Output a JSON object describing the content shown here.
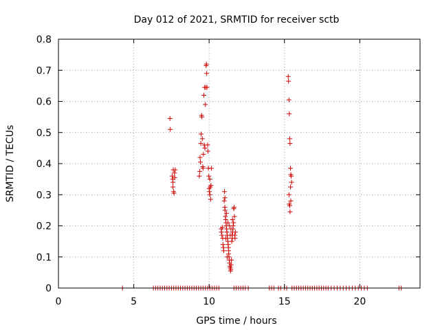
{
  "chart_data": {
    "type": "scatter",
    "title": "Day 012 of 2021, SRMTID for receiver sctb",
    "xlabel": "GPS time / hours",
    "ylabel": "SRMTID / TECUs",
    "xlim": [
      0,
      24
    ],
    "ylim": [
      0,
      0.8
    ],
    "xticks": [
      0,
      5,
      10,
      15,
      20
    ],
    "yticks": [
      0,
      0.1,
      0.2,
      0.3,
      0.4,
      0.5,
      0.6,
      0.7,
      0.8
    ],
    "xtick_labels": [
      "0",
      "5",
      "10",
      "15",
      "20"
    ],
    "ytick_labels": [
      "0",
      "0.1",
      "0.2",
      "0.3",
      "0.4",
      "0.5",
      "0.6",
      "0.7",
      "0.8"
    ],
    "grid": true,
    "marker": "plus",
    "marker_color": "#cc0000",
    "series": [
      {
        "name": "SRMTID",
        "points": [
          [
            4.25,
            0
          ],
          [
            6.3,
            0
          ],
          [
            6.45,
            0
          ],
          [
            6.6,
            0
          ],
          [
            6.75,
            0
          ],
          [
            6.9,
            0
          ],
          [
            7.05,
            0
          ],
          [
            7.2,
            0
          ],
          [
            7.35,
            0
          ],
          [
            7.5,
            0
          ],
          [
            7.65,
            0
          ],
          [
            7.8,
            0
          ],
          [
            7.95,
            0
          ],
          [
            8.1,
            0
          ],
          [
            8.25,
            0
          ],
          [
            8.4,
            0
          ],
          [
            8.55,
            0
          ],
          [
            8.7,
            0
          ],
          [
            8.85,
            0
          ],
          [
            9.0,
            0
          ],
          [
            9.15,
            0
          ],
          [
            9.3,
            0
          ],
          [
            9.45,
            0
          ],
          [
            9.6,
            0
          ],
          [
            9.75,
            0
          ],
          [
            9.9,
            0
          ],
          [
            10.05,
            0
          ],
          [
            10.2,
            0
          ],
          [
            10.35,
            0
          ],
          [
            10.5,
            0
          ],
          [
            10.65,
            0
          ],
          [
            11.65,
            0
          ],
          [
            11.8,
            0
          ],
          [
            11.95,
            0
          ],
          [
            12.1,
            0
          ],
          [
            12.25,
            0
          ],
          [
            12.4,
            0
          ],
          [
            12.6,
            0
          ],
          [
            14.0,
            0
          ],
          [
            14.15,
            0
          ],
          [
            14.3,
            0
          ],
          [
            14.6,
            0
          ],
          [
            14.75,
            0
          ],
          [
            15.0,
            0
          ],
          [
            15.15,
            0
          ],
          [
            15.5,
            0
          ],
          [
            15.65,
            0
          ],
          [
            15.8,
            0
          ],
          [
            15.95,
            0
          ],
          [
            16.1,
            0
          ],
          [
            16.25,
            0
          ],
          [
            16.4,
            0
          ],
          [
            16.55,
            0
          ],
          [
            16.7,
            0
          ],
          [
            16.85,
            0
          ],
          [
            17.0,
            0
          ],
          [
            17.15,
            0
          ],
          [
            17.3,
            0
          ],
          [
            17.45,
            0
          ],
          [
            17.6,
            0
          ],
          [
            17.75,
            0
          ],
          [
            17.9,
            0
          ],
          [
            18.1,
            0
          ],
          [
            18.3,
            0
          ],
          [
            18.5,
            0
          ],
          [
            18.7,
            0
          ],
          [
            18.9,
            0
          ],
          [
            19.1,
            0
          ],
          [
            19.3,
            0
          ],
          [
            19.5,
            0
          ],
          [
            19.7,
            0
          ],
          [
            19.9,
            0
          ],
          [
            20.1,
            0
          ],
          [
            20.3,
            0
          ],
          [
            20.5,
            0
          ],
          [
            22.6,
            0
          ],
          [
            22.75,
            0
          ],
          [
            7.4,
            0.545
          ],
          [
            7.42,
            0.51
          ],
          [
            7.55,
            0.36
          ],
          [
            7.58,
            0.35
          ],
          [
            7.6,
            0.34
          ],
          [
            7.62,
            0.38
          ],
          [
            7.65,
            0.31
          ],
          [
            7.67,
            0.305
          ],
          [
            7.7,
            0.37
          ],
          [
            7.72,
            0.355
          ],
          [
            7.75,
            0.38
          ],
          [
            7.6,
            0.325
          ],
          [
            9.35,
            0.36
          ],
          [
            9.38,
            0.375
          ],
          [
            9.4,
            0.42
          ],
          [
            9.42,
            0.405
          ],
          [
            9.45,
            0.465
          ],
          [
            9.47,
            0.495
          ],
          [
            9.5,
            0.555
          ],
          [
            9.52,
            0.55
          ],
          [
            9.55,
            0.48
          ],
          [
            9.58,
            0.39
          ],
          [
            9.6,
            0.385
          ],
          [
            9.62,
            0.43
          ],
          [
            9.65,
            0.62
          ],
          [
            9.68,
            0.46
          ],
          [
            9.7,
            0.645
          ],
          [
            9.72,
            0.45
          ],
          [
            9.75,
            0.59
          ],
          [
            9.78,
            0.645
          ],
          [
            9.8,
            0.715
          ],
          [
            9.82,
            0.72
          ],
          [
            9.84,
            0.69
          ],
          [
            9.86,
            0.645
          ],
          [
            9.9,
            0.46
          ],
          [
            9.92,
            0.44
          ],
          [
            9.95,
            0.385
          ],
          [
            9.98,
            0.36
          ],
          [
            10.0,
            0.32
          ],
          [
            10.02,
            0.31
          ],
          [
            10.05,
            0.3
          ],
          [
            10.08,
            0.325
          ],
          [
            10.1,
            0.285
          ],
          [
            10.12,
            0.33
          ],
          [
            10.15,
            0.385
          ],
          [
            10.05,
            0.35
          ],
          [
            10.8,
            0.19
          ],
          [
            10.82,
            0.18
          ],
          [
            10.85,
            0.17
          ],
          [
            10.88,
            0.195
          ],
          [
            10.9,
            0.16
          ],
          [
            10.92,
            0.14
          ],
          [
            10.95,
            0.13
          ],
          [
            10.97,
            0.12
          ],
          [
            11.0,
            0.28
          ],
          [
            11.02,
            0.31
          ],
          [
            11.04,
            0.26
          ],
          [
            11.06,
            0.25
          ],
          [
            11.08,
            0.23
          ],
          [
            11.1,
            0.22
          ],
          [
            11.12,
            0.21
          ],
          [
            11.14,
            0.2
          ],
          [
            11.16,
            0.19
          ],
          [
            11.18,
            0.18
          ],
          [
            11.2,
            0.17
          ],
          [
            11.22,
            0.16
          ],
          [
            11.24,
            0.15
          ],
          [
            11.26,
            0.14
          ],
          [
            11.28,
            0.13
          ],
          [
            11.3,
            0.12
          ],
          [
            11.32,
            0.1
          ],
          [
            11.34,
            0.09
          ],
          [
            11.36,
            0.08
          ],
          [
            11.38,
            0.07
          ],
          [
            11.4,
            0.065
          ],
          [
            11.42,
            0.055
          ],
          [
            11.44,
            0.06
          ],
          [
            11.46,
            0.075
          ],
          [
            11.48,
            0.09
          ],
          [
            11.5,
            0.15
          ],
          [
            11.52,
            0.17
          ],
          [
            11.54,
            0.16
          ],
          [
            11.56,
            0.18
          ],
          [
            11.58,
            0.19
          ],
          [
            11.6,
            0.2
          ],
          [
            11.62,
            0.21
          ],
          [
            11.64,
            0.255
          ],
          [
            11.66,
            0.26
          ],
          [
            11.68,
            0.23
          ],
          [
            11.7,
            0.17
          ],
          [
            11.72,
            0.16
          ],
          [
            11.74,
            0.18
          ],
          [
            11.05,
            0.29
          ],
          [
            11.15,
            0.24
          ],
          [
            11.25,
            0.21
          ],
          [
            11.35,
            0.2
          ],
          [
            11.45,
            0.19
          ],
          [
            11.2,
            0.1
          ],
          [
            11.3,
            0.11
          ],
          [
            11.55,
            0.22
          ],
          [
            11.4,
            0.17
          ],
          [
            11.1,
            0.16
          ],
          [
            15.25,
            0.68
          ],
          [
            15.27,
            0.665
          ],
          [
            15.3,
            0.605
          ],
          [
            15.32,
            0.56
          ],
          [
            15.35,
            0.48
          ],
          [
            15.37,
            0.465
          ],
          [
            15.4,
            0.385
          ],
          [
            15.42,
            0.365
          ],
          [
            15.45,
            0.36
          ],
          [
            15.47,
            0.34
          ],
          [
            15.3,
            0.3
          ],
          [
            15.32,
            0.27
          ],
          [
            15.35,
            0.265
          ],
          [
            15.37,
            0.245
          ],
          [
            15.4,
            0.325
          ],
          [
            15.42,
            0.28
          ]
        ]
      }
    ]
  }
}
